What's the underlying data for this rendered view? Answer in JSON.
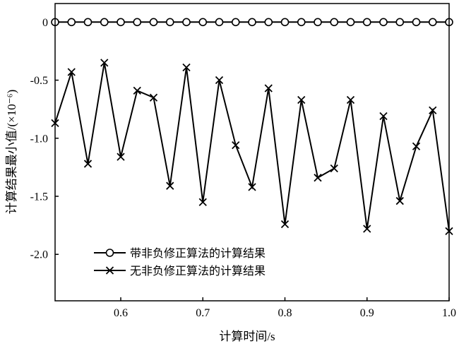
{
  "chart_data": {
    "type": "line",
    "title": "",
    "xlabel": "计算时间/s",
    "ylabel": "计算结果最小值/(×10⁻⁶)",
    "xlim": [
      0.52,
      1.0
    ],
    "ylim": [
      -2.4,
      0.16
    ],
    "xticks": [
      0.6,
      0.7,
      0.8,
      0.9,
      1.0
    ],
    "xtick_labels": [
      "0.6",
      "0.7",
      "0.8",
      "0.9",
      "1.0"
    ],
    "yticks": [
      0,
      -0.5,
      -1.0,
      -1.5,
      -2.0
    ],
    "ytick_labels": [
      "0",
      "-0.5",
      "-1.0",
      "-1.5",
      "-2.0"
    ],
    "grid": false,
    "legend_position": "lower-left",
    "x": [
      0.52,
      0.54,
      0.56,
      0.58,
      0.6,
      0.62,
      0.64,
      0.66,
      0.68,
      0.7,
      0.72,
      0.74,
      0.76,
      0.78,
      0.8,
      0.82,
      0.84,
      0.86,
      0.88,
      0.9,
      0.92,
      0.94,
      0.96,
      0.98,
      1.0
    ],
    "series": [
      {
        "name": "带非负修正算法的计算结果",
        "marker": "circle",
        "color": "#000000",
        "values": [
          0,
          0,
          0,
          0,
          0,
          0,
          0,
          0,
          0,
          0,
          0,
          0,
          0,
          0,
          0,
          0,
          0,
          0,
          0,
          0,
          0,
          0,
          0,
          0,
          0
        ]
      },
      {
        "name": "无非负修正算法的计算结果",
        "marker": "cross",
        "color": "#000000",
        "values": [
          -0.87,
          -0.43,
          -1.22,
          -0.35,
          -1.16,
          -0.59,
          -0.65,
          -1.41,
          -0.39,
          -1.55,
          -0.5,
          -1.06,
          -1.42,
          -0.57,
          -1.74,
          -0.67,
          -1.34,
          -1.26,
          -0.67,
          -1.78,
          -0.81,
          -1.54,
          -1.07,
          -0.76,
          -1.8
        ]
      }
    ]
  }
}
